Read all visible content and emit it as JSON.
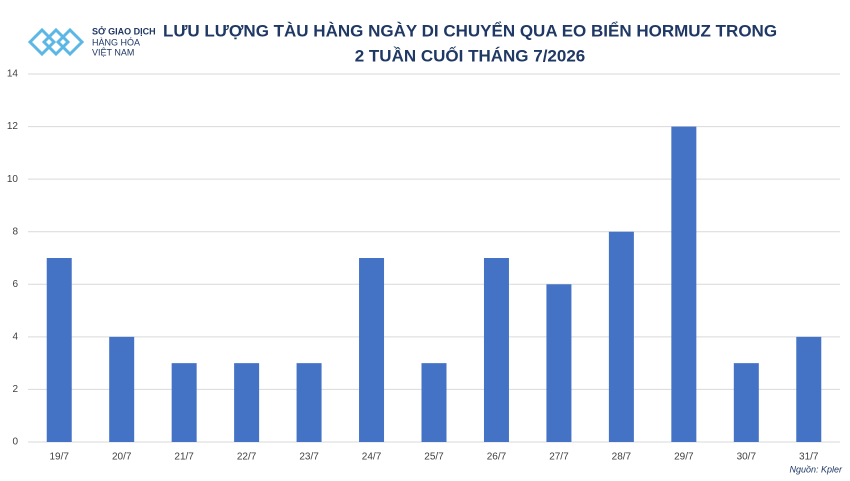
{
  "logo_lines": [
    "SỞ GIAO DỊCH",
    "HÀNG HÓA",
    "VIỆT NAM"
  ],
  "source": "Nguồn: Kpler",
  "chart_data": {
    "type": "bar",
    "title_lines": [
      "LƯU LƯỢNG TÀU HÀNG NGÀY DI CHUYỂN QUA EO BIỂN HORMUZ TRONG",
      "2 TUẦN CUỐI THÁNG 7/2026"
    ],
    "categories": [
      "19/7",
      "20/7",
      "21/7",
      "22/7",
      "23/7",
      "24/7",
      "25/7",
      "26/7",
      "27/7",
      "28/7",
      "29/7",
      "30/7",
      "31/7"
    ],
    "values": [
      7,
      4,
      3,
      3,
      3,
      7,
      3,
      7,
      6,
      8,
      12,
      3,
      4
    ],
    "color": "#4472c4",
    "ylim": [
      0,
      14
    ],
    "yticks": [
      0,
      2,
      4,
      6,
      8,
      10,
      12,
      14
    ],
    "grid": true
  }
}
